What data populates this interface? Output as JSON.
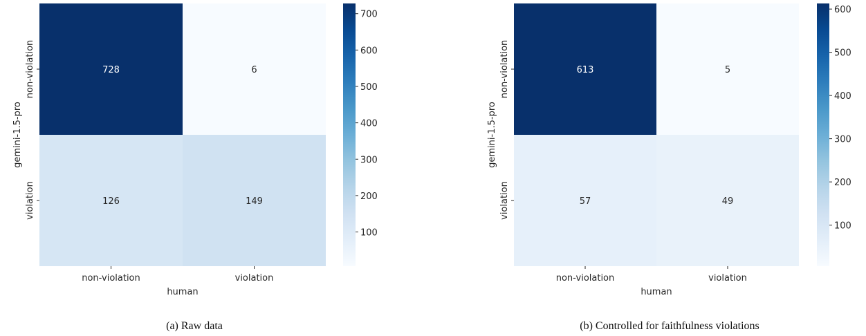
{
  "chart_data": [
    {
      "type": "heatmap",
      "caption": "(a) Raw data",
      "xlabel": "human",
      "ylabel": "gemini-1.5-pro",
      "x_categories": [
        "non-violation",
        "violation"
      ],
      "y_categories": [
        "non-violation",
        "violation"
      ],
      "values": [
        [
          728,
          6
        ],
        [
          126,
          149
        ]
      ],
      "colorscale": "Blues",
      "colorbar": {
        "min": 6,
        "max": 728,
        "ticks": [
          100,
          200,
          300,
          400,
          500,
          600,
          700
        ]
      }
    },
    {
      "type": "heatmap",
      "caption": "(b) Controlled for faithfulness violations",
      "xlabel": "human",
      "ylabel": "gemini-1.5-pro",
      "x_categories": [
        "non-violation",
        "violation"
      ],
      "y_categories": [
        "non-violation",
        "violation"
      ],
      "values": [
        [
          613,
          5
        ],
        [
          57,
          49
        ]
      ],
      "colorscale": "Blues",
      "colorbar": {
        "min": 5,
        "max": 613,
        "ticks": [
          100,
          200,
          300,
          400,
          500,
          600
        ]
      }
    }
  ]
}
